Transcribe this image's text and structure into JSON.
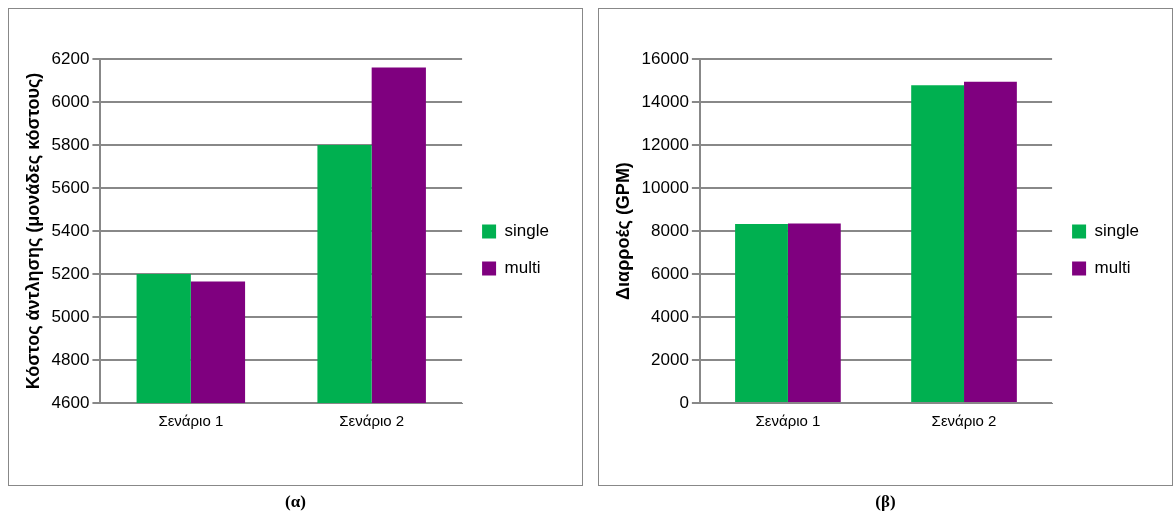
{
  "chart_data": [
    {
      "type": "bar",
      "ylabel": "Κόστος άντλησης (μονάδες κόστους)",
      "categories": [
        "Σενάριο 1",
        "Σενάριο 2"
      ],
      "series": [
        {
          "name": "single",
          "color": "#00b050",
          "values": [
            5200,
            5800
          ]
        },
        {
          "name": "multi",
          "color": "#7f007f",
          "values": [
            5165,
            6160
          ]
        }
      ],
      "ylim": [
        4600,
        6200
      ],
      "yticks": [
        4600,
        4800,
        5000,
        5200,
        5400,
        5600,
        5800,
        6000,
        6200
      ],
      "grid": "y",
      "legend": "right",
      "annotations": [
        "(α)"
      ]
    },
    {
      "type": "bar",
      "ylabel": "Διαρροές (GPM)",
      "categories": [
        "Σενάριο 1",
        "Σενάριο 2"
      ],
      "series": [
        {
          "name": "single",
          "color": "#00b050",
          "values": [
            8330,
            14780
          ]
        },
        {
          "name": "multi",
          "color": "#7f007f",
          "values": [
            8350,
            14940
          ]
        }
      ],
      "ylim": [
        0,
        16000
      ],
      "yticks": [
        0,
        2000,
        4000,
        6000,
        8000,
        10000,
        12000,
        14000,
        16000
      ],
      "grid": "y",
      "legend": "right",
      "annotations": [
        "(β)"
      ]
    }
  ]
}
